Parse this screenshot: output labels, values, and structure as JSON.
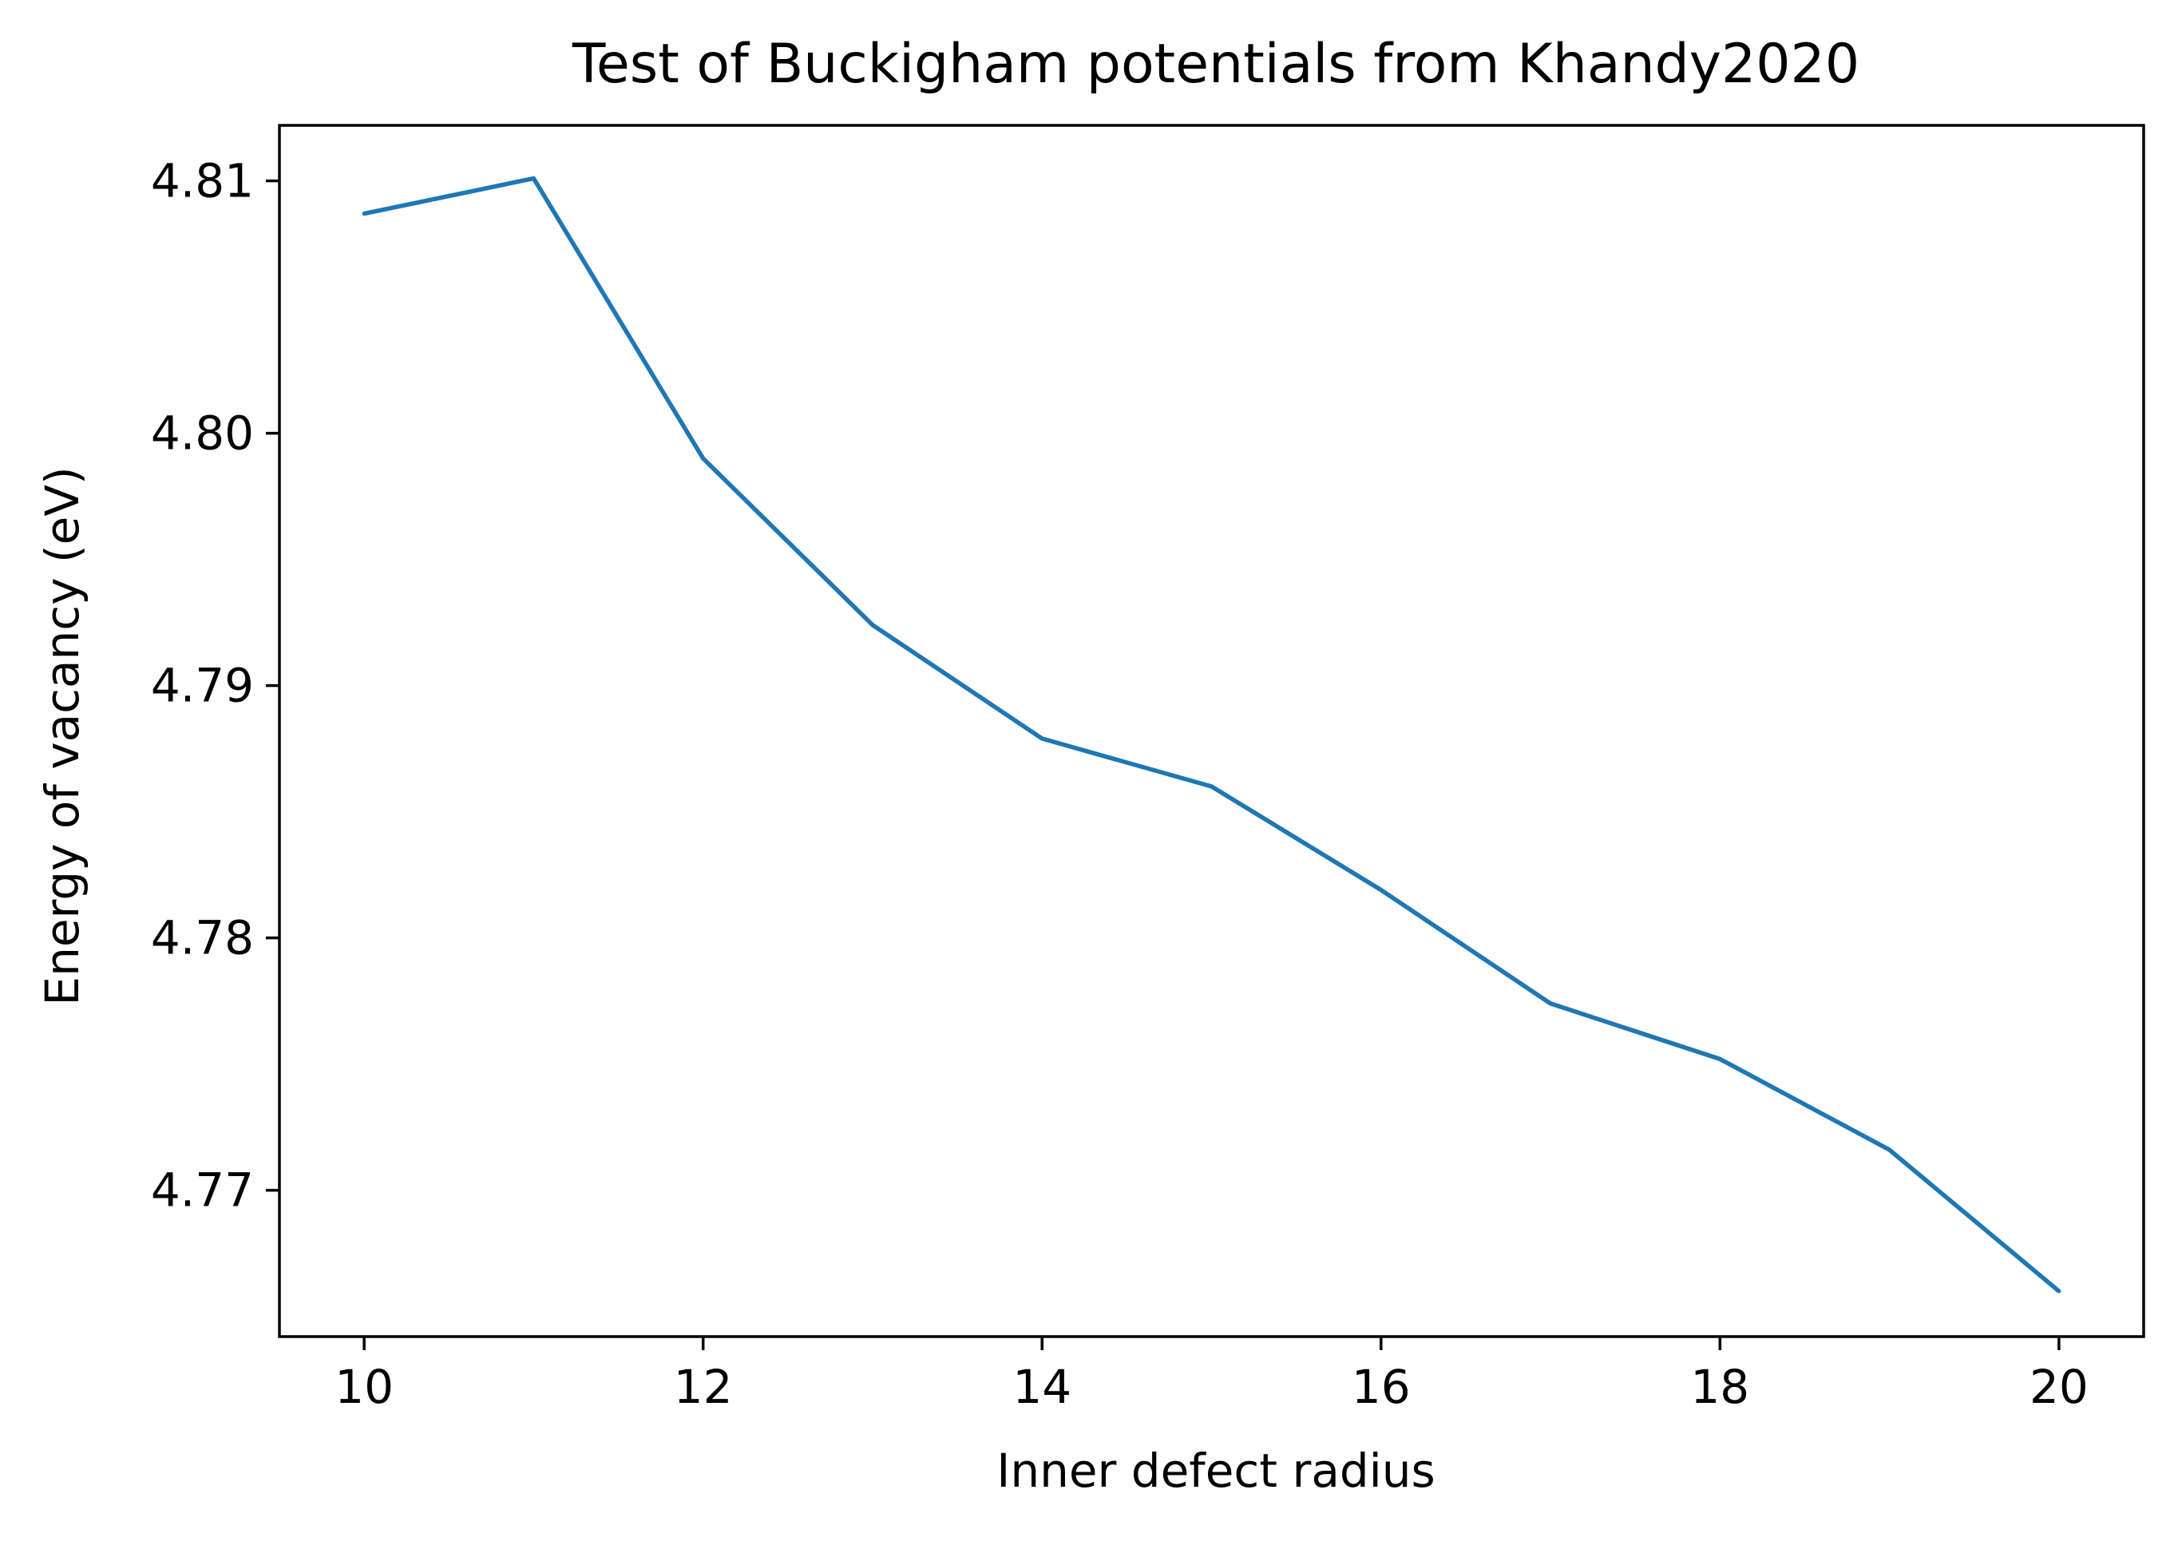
{
  "chart_data": {
    "type": "line",
    "title": "Test of Buckigham potentials from Khandy2020",
    "xlabel": "Inner defect radius",
    "ylabel": "Energy of vacancy (eV)",
    "xlim": [
      9.5,
      20.5
    ],
    "ylim": [
      4.7642,
      4.8122
    ],
    "xticks": [
      10,
      12,
      14,
      16,
      18,
      20
    ],
    "xtick_labels": [
      "10",
      "12",
      "14",
      "16",
      "18",
      "20"
    ],
    "yticks": [
      4.77,
      4.78,
      4.79,
      4.8,
      4.81
    ],
    "ytick_labels": [
      "4.77",
      "4.78",
      "4.79",
      "4.80",
      "4.81"
    ],
    "grid": false,
    "series": [
      {
        "color": "#1f77b4",
        "x": [
          10,
          11,
          12,
          13,
          14,
          15,
          16,
          17,
          18,
          19,
          20
        ],
        "y": [
          4.8087,
          4.8101,
          4.799,
          4.7924,
          4.7879,
          4.786,
          4.7819,
          4.7774,
          4.7752,
          4.7716,
          4.766
        ]
      }
    ]
  }
}
